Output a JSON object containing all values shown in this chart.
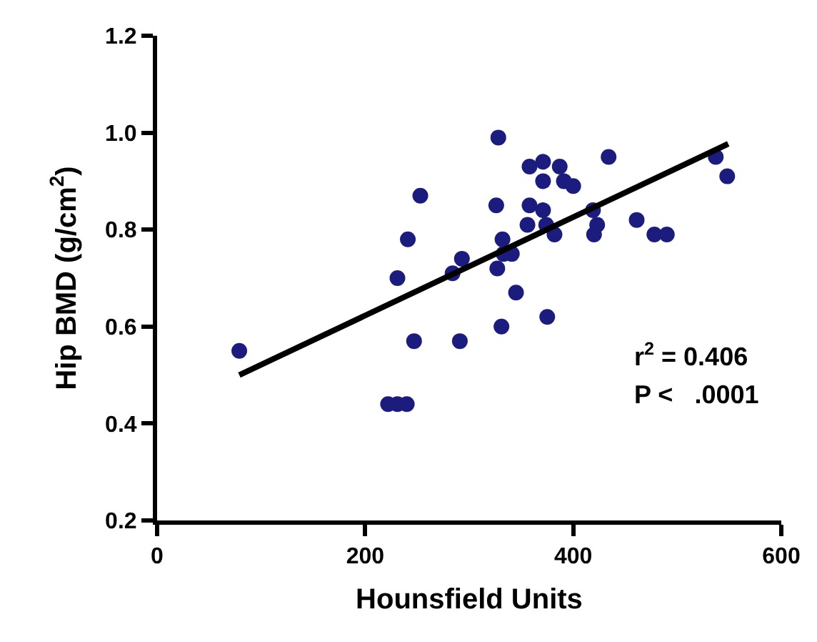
{
  "chart_data": {
    "type": "scatter",
    "xlabel": "Hounsfield Units",
    "ylabel": "Hip BMD (g/cm$^{2}$)",
    "xlim": [
      0,
      600
    ],
    "xticks": [
      0,
      200,
      400,
      600
    ],
    "ylim": [
      0.2,
      1.2
    ],
    "yticks": [
      0.2,
      0.4,
      0.6,
      0.8,
      {
        "value": 1,
        "label": "1.0"
      },
      1.2
    ],
    "grid": false,
    "legend": false,
    "annotations": [
      "r$^{2}$ = 0.406",
      "P <   .0001"
    ],
    "series": [
      {
        "marker": "circle",
        "color": "#1c1c7e",
        "x": [
          79,
          328,
          253,
          241,
          231,
          247,
          222,
          231,
          240,
          291,
          284,
          293,
          326,
          327,
          331,
          332,
          333,
          341,
          345,
          358,
          371,
          371,
          387,
          391,
          400,
          358,
          371,
          374,
          356,
          382,
          375,
          419,
          423,
          420,
          434,
          461,
          478,
          490,
          537,
          548
        ],
        "values": [
          0.55,
          0.99,
          0.87,
          0.78,
          0.7,
          0.57,
          0.44,
          0.44,
          0.44,
          0.57,
          0.71,
          0.74,
          0.85,
          0.72,
          0.6,
          0.78,
          0.75,
          0.75,
          0.67,
          0.93,
          0.94,
          0.9,
          0.93,
          0.9,
          0.89,
          0.85,
          0.84,
          0.81,
          0.81,
          0.79,
          0.62,
          0.84,
          0.81,
          0.79,
          0.95,
          0.82,
          0.79,
          0.79,
          0.95,
          0.91
        ]
      },
      {
        "type": "line",
        "color": "#000000",
        "line_style": "solid",
        "x": [
          79,
          549
        ],
        "values": [
          0.5,
          0.977
        ]
      }
    ]
  }
}
